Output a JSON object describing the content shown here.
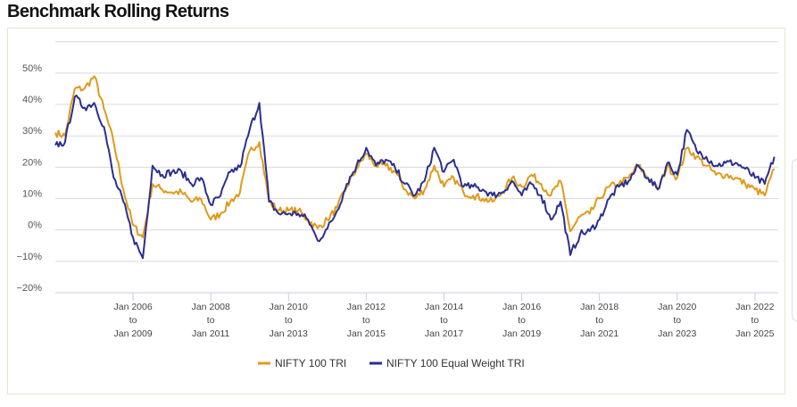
{
  "title": "Benchmark Rolling Returns",
  "chart_data": {
    "type": "line",
    "title": "Benchmark Rolling Returns",
    "xlabel": "",
    "ylabel": "",
    "ylim": [
      -20,
      60
    ],
    "yticks": [
      50,
      40,
      30,
      20,
      10,
      0,
      -10,
      -20
    ],
    "ytick_labels": [
      "50%",
      "40%",
      "30%",
      "20%",
      "10%",
      "0%",
      "−10%",
      "−20%"
    ],
    "x_start": 2004.0,
    "x_step_years": 0.25,
    "xlim": [
      2004.0,
      2022.6
    ],
    "xticks": [
      {
        "at": 2006,
        "label": [
          "Jan 2006",
          "to",
          "Jan 2009"
        ]
      },
      {
        "at": 2008,
        "label": [
          "Jan 2008",
          "to",
          "Jan 2011"
        ]
      },
      {
        "at": 2010,
        "label": [
          "Jan 2010",
          "to",
          "Jan 2013"
        ]
      },
      {
        "at": 2012,
        "label": [
          "Jan 2012",
          "to",
          "Jan 2015"
        ]
      },
      {
        "at": 2014,
        "label": [
          "Jan 2014",
          "to",
          "Jan 2017"
        ]
      },
      {
        "at": 2016,
        "label": [
          "Jan 2016",
          "to",
          "Jan 2019"
        ]
      },
      {
        "at": 2018,
        "label": [
          "Jan 2018",
          "to",
          "Jan 2021"
        ]
      },
      {
        "at": 2020,
        "label": [
          "Jan 2020",
          "to",
          "Jan 2023"
        ]
      },
      {
        "at": 2022,
        "label": [
          "Jan 2022",
          "to",
          "Jan 2025"
        ]
      }
    ],
    "grid": true,
    "legend_position": "bottom-center",
    "series": [
      {
        "name": "NIFTY 100 TRI",
        "color": "#e09a1a",
        "values": [
          31,
          30,
          45,
          45,
          49,
          38.6,
          28,
          12.9,
          1.5,
          -2.4,
          14.6,
          12.9,
          12,
          12,
          9,
          9.9,
          3.3,
          5.2,
          9,
          12,
          25.2,
          28,
          9,
          6.2,
          6.2,
          6.2,
          3.3,
          0.5,
          3.3,
          7.1,
          13.8,
          19.5,
          24.3,
          20.5,
          20.5,
          18.5,
          12.9,
          10,
          12.9,
          20.5,
          13.8,
          16.6,
          12,
          11,
          10,
          9,
          12,
          16.6,
          13.8,
          17.6,
          14.7,
          11,
          15.6,
          -0.4,
          4.3,
          5.2,
          10,
          13.8,
          14.7,
          16.6,
          20.5,
          16.6,
          12.9,
          20.5,
          16.6,
          26.2,
          23.3,
          20.5,
          17.6,
          17.6,
          16.6,
          14.7,
          12.9,
          11,
          19.5
        ]
      },
      {
        "name": "NIFTY 100 Equal Weight TRI",
        "color": "#2b2f8f",
        "values": [
          27,
          28,
          42.4,
          39,
          40.5,
          32.9,
          16.7,
          9,
          -2.4,
          -9,
          20.5,
          17.6,
          18.5,
          18.5,
          14.7,
          16.6,
          8,
          10.9,
          18.5,
          20,
          32,
          40.5,
          9,
          5.2,
          5.2,
          5.2,
          3.3,
          -3.4,
          0.4,
          6.2,
          14.7,
          20.5,
          26.2,
          20.5,
          22.4,
          19.5,
          14.7,
          10.9,
          15.6,
          26.2,
          18.5,
          22.4,
          13.8,
          13.8,
          12.9,
          11,
          12,
          15.6,
          11,
          14.7,
          11,
          3.3,
          9,
          -8,
          -1.4,
          -0.4,
          3.3,
          10,
          13.8,
          15.6,
          20.5,
          16.6,
          12.9,
          21.4,
          17.6,
          31.9,
          25.2,
          23.3,
          20.5,
          21.4,
          21.4,
          19.5,
          16.6,
          14.7,
          23.3
        ]
      }
    ]
  }
}
